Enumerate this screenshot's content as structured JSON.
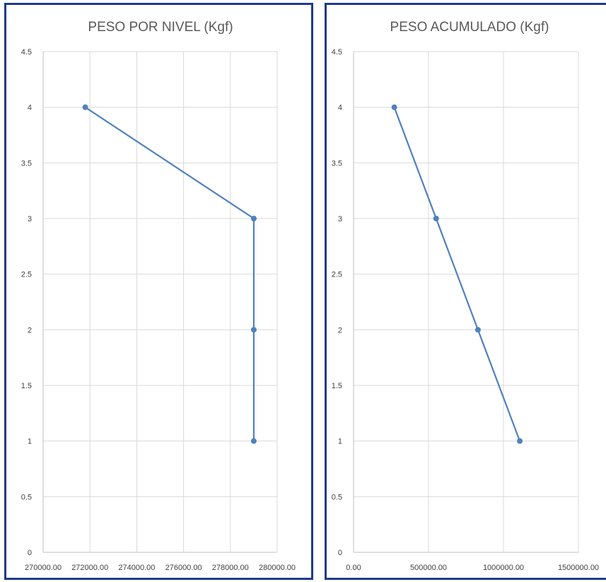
{
  "chart_data": [
    {
      "type": "line",
      "title": "PESO POR NIVEL (Kgf)",
      "xlabel": "",
      "ylabel": "",
      "xlim": [
        270000,
        280000
      ],
      "ylim": [
        0,
        4.5
      ],
      "x_ticks": [
        270000,
        272000,
        274000,
        276000,
        278000,
        280000
      ],
      "x_tick_labels": [
        "270000.00",
        "272000.00",
        "274000.00",
        "276000.00",
        "278000.00",
        "280000.00"
      ],
      "y_ticks": [
        0,
        0.5,
        1,
        1.5,
        2,
        2.5,
        3,
        3.5,
        4,
        4.5
      ],
      "y_tick_labels": [
        "0",
        "0.5",
        "1",
        "1.5",
        "2",
        "2.5",
        "3",
        "3.5",
        "4",
        "4.5"
      ],
      "grid": true,
      "series": [
        {
          "x": [
            271800,
            279000,
            279000,
            279000
          ],
          "y": [
            4,
            3,
            2,
            1
          ],
          "color": "#4f81bd"
        }
      ]
    },
    {
      "type": "line",
      "title": "PESO ACUMULADO  (Kgf)",
      "xlabel": "",
      "ylabel": "",
      "xlim": [
        0,
        1500000
      ],
      "ylim": [
        0,
        4.5
      ],
      "x_ticks": [
        0,
        500000,
        1000000,
        1500000
      ],
      "x_tick_labels": [
        "0.00",
        "500000.00",
        "1000000.00",
        "1500000.00"
      ],
      "y_ticks": [
        0,
        0.5,
        1,
        1.5,
        2,
        2.5,
        3,
        3.5,
        4,
        4.5
      ],
      "y_tick_labels": [
        "0",
        "0.5",
        "1",
        "1.5",
        "2",
        "2.5",
        "3",
        "3.5",
        "4",
        "4.5"
      ],
      "grid": true,
      "series": [
        {
          "x": [
            271800,
            550800,
            829800,
            1108800
          ],
          "y": [
            4,
            3,
            2,
            1
          ],
          "color": "#4f81bd"
        }
      ]
    }
  ]
}
